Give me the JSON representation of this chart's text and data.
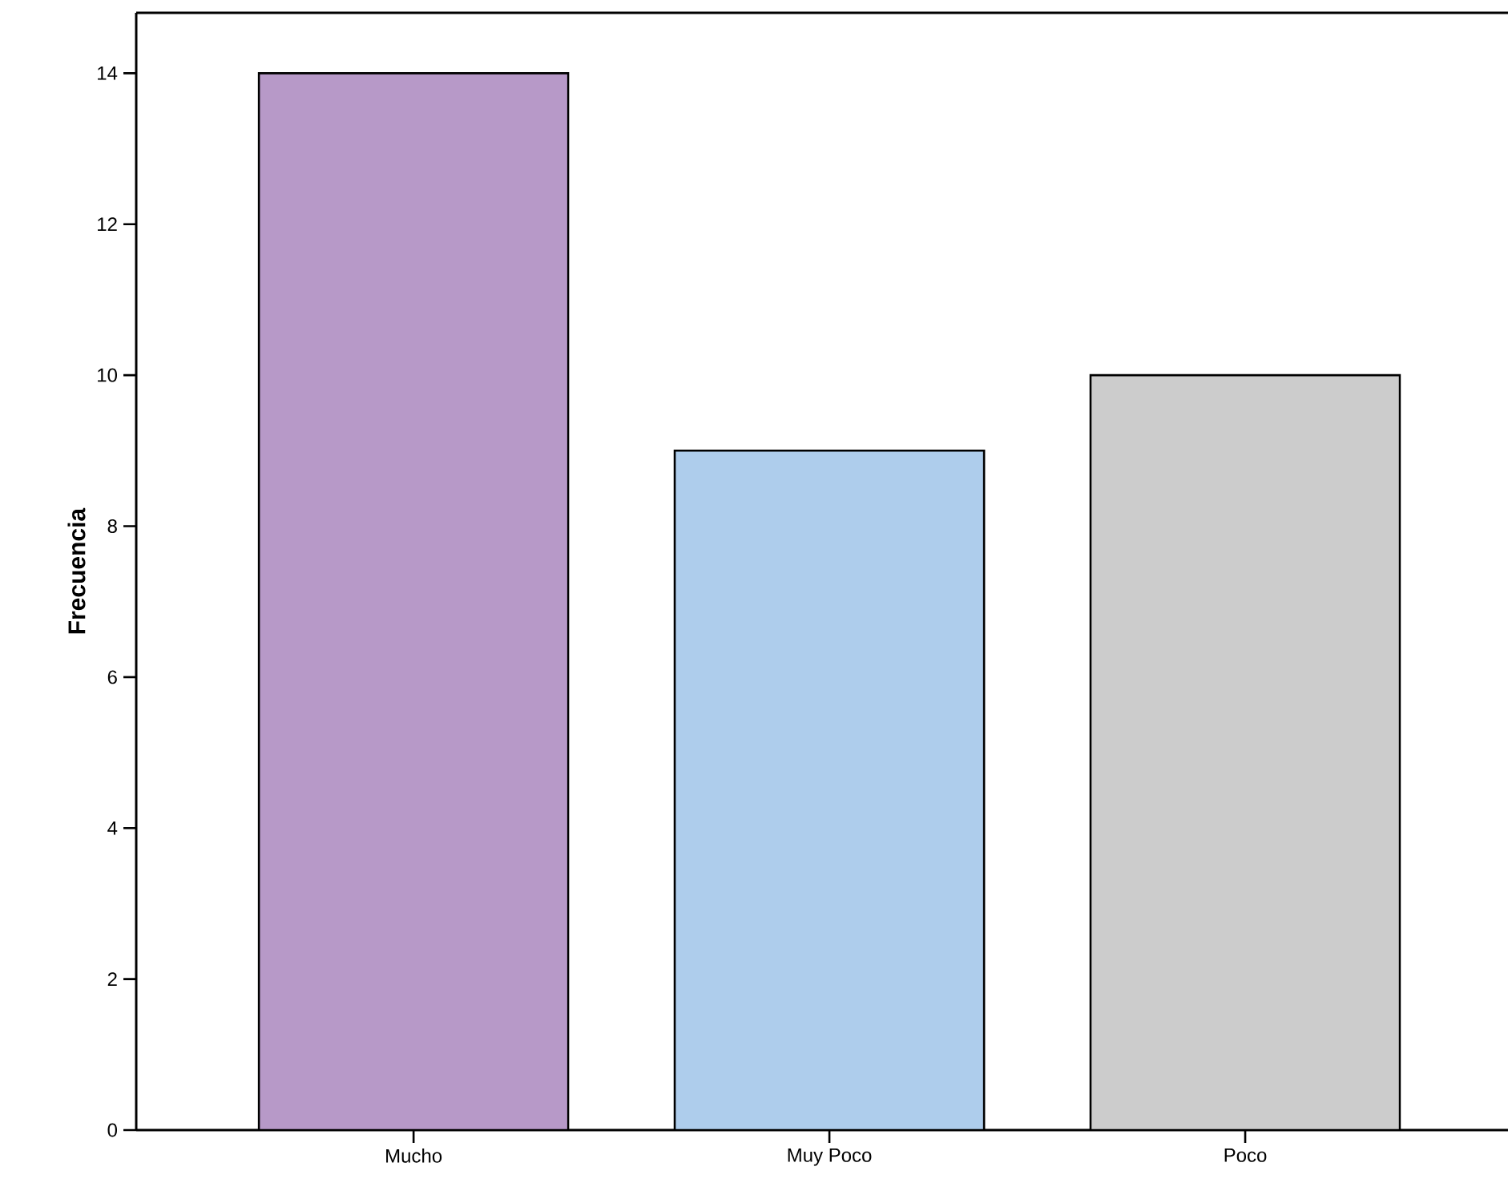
{
  "chart_data": {
    "type": "bar",
    "ylabel": "**Frecuencia**",
    "categories": [
      "Mucho",
      "Muy Poco",
      "Poco"
    ],
    "values": [
      14,
      9,
      10
    ],
    "colors": [
      "#b799c8",
      "#aecdec",
      "#cccccc"
    ],
    "ylim": [
      0,
      14.8
    ],
    "yticks": [
      0,
      2,
      4,
      6,
      8,
      10,
      12,
      14
    ],
    "grid": false
  }
}
